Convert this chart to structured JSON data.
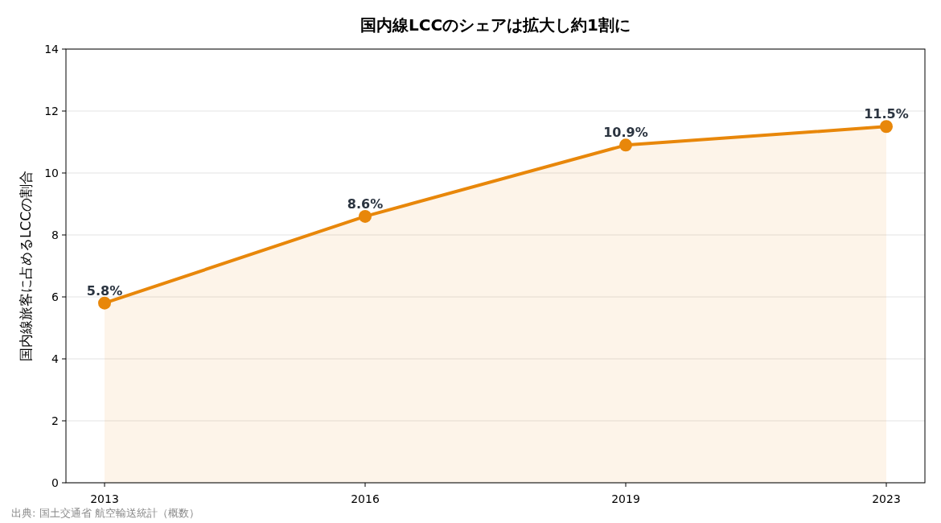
{
  "chart_data": {
    "type": "area",
    "title": "国内線LCCのシェアは拡大し約1割に",
    "ylabel": "国内線旅客に占めるLCCの割合",
    "categories": [
      "2013",
      "2016",
      "2019",
      "2023"
    ],
    "series": [
      {
        "color": "#e8870a",
        "values": [
          5.8,
          8.6,
          10.9,
          11.5
        ],
        "value_labels": [
          "5.8%",
          "8.6%",
          "10.9%",
          "11.5%"
        ]
      }
    ],
    "ylim": [
      0,
      14
    ],
    "yticks": [
      0,
      2,
      4,
      6,
      8,
      10,
      12,
      14
    ],
    "grid": "y",
    "marker": "circle",
    "annotations": [
      "出典: 国土交通省 航空輸送統計（概数）"
    ]
  }
}
